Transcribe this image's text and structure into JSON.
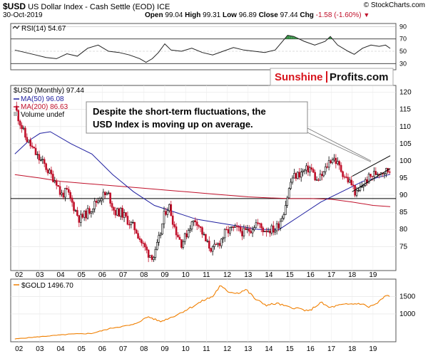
{
  "header": {
    "symbol": "$USD",
    "name": "US Dollar Index - Cash Settle (EOD) ICE",
    "watermark": "© StockCharts.com",
    "date": "30-Oct-2019",
    "open_label": "Open",
    "open": "99.04",
    "high_label": "High",
    "high": "99.31",
    "low_label": "Low",
    "low": "96.89",
    "close_label": "Close",
    "close": "97.44",
    "chg_label": "Chg",
    "chg": "-1.58 (-1.60%)"
  },
  "colors": {
    "up": "#000000",
    "down": "#c0102a",
    "ma50": "#1f1fa0",
    "ma200": "#c0102a",
    "gold": "#f07f00",
    "rsi_over": "#2f8f3f",
    "rsi_under": "#b83a3a",
    "sunshine": "#d8141c",
    "callout_border": "#888888"
  },
  "legend": {
    "rsi": "RSI(14) 54.67",
    "usd": "$USD (Monthly) 97.44",
    "ma50": "MA(50) 96.08",
    "ma200": "MA(200) 86.63",
    "volume": "Volume undef",
    "gold": "$GOLD 1496.70"
  },
  "brand": {
    "part1": "Sunshine",
    "part2": "Profits.com"
  },
  "annotation": {
    "line1": "Despite the short-term fluctuations, the",
    "line2": "USD Index is moving up on average."
  },
  "chart_data": [
    {
      "type": "line",
      "panel": "RSI",
      "series": [
        {
          "name": "RSI(14)",
          "x": [
            2001.8,
            2002.3,
            2002.8,
            2003.3,
            2003.8,
            2004.3,
            2004.8,
            2005.3,
            2005.8,
            2006.3,
            2006.8,
            2007.3,
            2007.8,
            2008.1,
            2008.4,
            2008.7,
            2009.0,
            2009.3,
            2009.8,
            2010.3,
            2010.8,
            2011.3,
            2011.8,
            2012.3,
            2012.8,
            2013.3,
            2013.8,
            2014.3,
            2014.6,
            2014.9,
            2015.2,
            2015.7,
            2016.2,
            2016.7,
            2016.95,
            2017.3,
            2017.8,
            2018.1,
            2018.5,
            2018.9,
            2019.3,
            2019.6,
            2019.83
          ],
          "values": [
            52,
            48,
            44,
            40,
            38,
            46,
            42,
            55,
            60,
            50,
            48,
            44,
            38,
            32,
            38,
            48,
            62,
            52,
            50,
            55,
            48,
            44,
            50,
            56,
            52,
            50,
            48,
            52,
            64,
            76,
            74,
            66,
            60,
            66,
            74,
            60,
            50,
            45,
            55,
            60,
            58,
            60,
            54.67
          ]
        }
      ],
      "yticks": [
        30,
        50,
        70,
        90
      ],
      "ylim": [
        20,
        95
      ],
      "reference_lines": [
        30,
        70
      ]
    },
    {
      "type": "candlestick",
      "panel": "$USD (Monthly)",
      "x_ticks": [
        "02",
        "03",
        "04",
        "05",
        "06",
        "07",
        "08",
        "09",
        "10",
        "11",
        "12",
        "13",
        "14",
        "15",
        "16",
        "17",
        "18",
        "19"
      ],
      "x_tick_values": [
        2002,
        2003,
        2004,
        2005,
        2006,
        2007,
        2008,
        2009,
        2010,
        2011,
        2012,
        2013,
        2014,
        2015,
        2016,
        2017,
        2018,
        2019
      ],
      "y_ticks": [
        75,
        80,
        85,
        90,
        95,
        100,
        105,
        110,
        115,
        120
      ],
      "ylim": [
        68,
        122
      ],
      "close_path": {
        "x": [
          2001.8,
          2002.0,
          2002.3,
          2002.6,
          2002.9,
          2003.2,
          2003.5,
          2003.8,
          2004.0,
          2004.3,
          2004.6,
          2004.9,
          2005.3,
          2005.7,
          2006.0,
          2006.3,
          2006.6,
          2006.9,
          2007.3,
          2007.6,
          2007.9,
          2008.2,
          2008.5,
          2008.8,
          2009.0,
          2009.2,
          2009.5,
          2009.8,
          2010.0,
          2010.2,
          2010.5,
          2010.8,
          2011.0,
          2011.3,
          2011.6,
          2011.9,
          2012.2,
          2012.5,
          2012.8,
          2013.1,
          2013.4,
          2013.7,
          2014.0,
          2014.3,
          2014.5,
          2014.7,
          2014.9,
          2015.1,
          2015.4,
          2015.7,
          2016.0,
          2016.3,
          2016.6,
          2016.9,
          2017.1,
          2017.4,
          2017.7,
          2018.0,
          2018.2,
          2018.5,
          2018.8,
          2019.0,
          2019.3,
          2019.6,
          2019.83
        ],
        "values": [
          116,
          112,
          107,
          104,
          101,
          99,
          96,
          94,
          90,
          91,
          87,
          83,
          85,
          88,
          90,
          90,
          85,
          85,
          82,
          80,
          76,
          73,
          72,
          79,
          85,
          87,
          80,
          76,
          78,
          81,
          83,
          79,
          76,
          74,
          76,
          79,
          80,
          80,
          79,
          80,
          82,
          80,
          80,
          80,
          82,
          85,
          90,
          95,
          96,
          97,
          98,
          94,
          96,
          100,
          101,
          98,
          95,
          93,
          90,
          93,
          95,
          96,
          97,
          97,
          97.44
        ]
      },
      "ma50": {
        "name": "MA(50)",
        "x": [
          2001.8,
          2002.5,
          2003.0,
          2003.5,
          2004.5,
          2005.5,
          2006.5,
          2007.5,
          2008.5,
          2009.5,
          2010.5,
          2011.5,
          2012.5,
          2013.5,
          2014.5,
          2015.5,
          2016.5,
          2017.5,
          2018.5,
          2019.83
        ],
        "values": [
          102,
          106,
          108,
          108.5,
          105,
          102,
          96,
          91,
          87,
          85,
          83,
          82,
          81,
          80,
          80,
          84,
          88,
          91,
          94,
          96.08
        ]
      },
      "ma200": {
        "name": "MA(200)",
        "x": [
          2001.8,
          2003,
          2004,
          2005,
          2006,
          2007,
          2008,
          2009,
          2010,
          2011,
          2012,
          2013,
          2014,
          2015,
          2016,
          2017,
          2018,
          2019,
          2019.83
        ],
        "values": [
          96,
          95,
          94,
          93.5,
          93,
          92.5,
          92,
          91.5,
          91,
          90.5,
          90,
          89.5,
          89.2,
          89,
          89,
          88.8,
          88,
          87,
          86.63
        ]
      },
      "horizontal_line": 89,
      "trend_channel": {
        "upper": [
          [
            2018.0,
            95.5
          ],
          [
            2019.83,
            101.5
          ]
        ],
        "lower": [
          [
            2018.0,
            91
          ],
          [
            2019.83,
            97.8
          ]
        ]
      },
      "arrow_to": [
        2018.9,
        100
      ]
    },
    {
      "type": "line",
      "panel": "$GOLD",
      "series": [
        {
          "name": "$GOLD",
          "x": [
            2001.8,
            2002.5,
            2003.5,
            2004.5,
            2005.5,
            2006.5,
            2007.5,
            2008.2,
            2008.8,
            2009.5,
            2010.3,
            2010.9,
            2011.3,
            2011.65,
            2012.0,
            2012.5,
            2012.9,
            2013.4,
            2013.9,
            2014.4,
            2014.9,
            2015.5,
            2015.9,
            2016.5,
            2016.9,
            2017.4,
            2017.9,
            2018.4,
            2018.8,
            2019.2,
            2019.6,
            2019.83
          ],
          "values": [
            280,
            320,
            370,
            420,
            440,
            600,
            690,
            920,
            780,
            950,
            1200,
            1400,
            1500,
            1800,
            1650,
            1600,
            1700,
            1400,
            1250,
            1300,
            1200,
            1150,
            1070,
            1330,
            1180,
            1250,
            1280,
            1300,
            1200,
            1300,
            1520,
            1496.7
          ]
        }
      ],
      "y_ticks": [
        1000,
        1500
      ],
      "ylim": [
        200,
        2000
      ],
      "x_ticks": [
        "02",
        "03",
        "04",
        "05",
        "06",
        "07",
        "08",
        "09",
        "10",
        "11",
        "12",
        "13",
        "14",
        "15",
        "16",
        "17",
        "18",
        "19"
      ]
    }
  ]
}
